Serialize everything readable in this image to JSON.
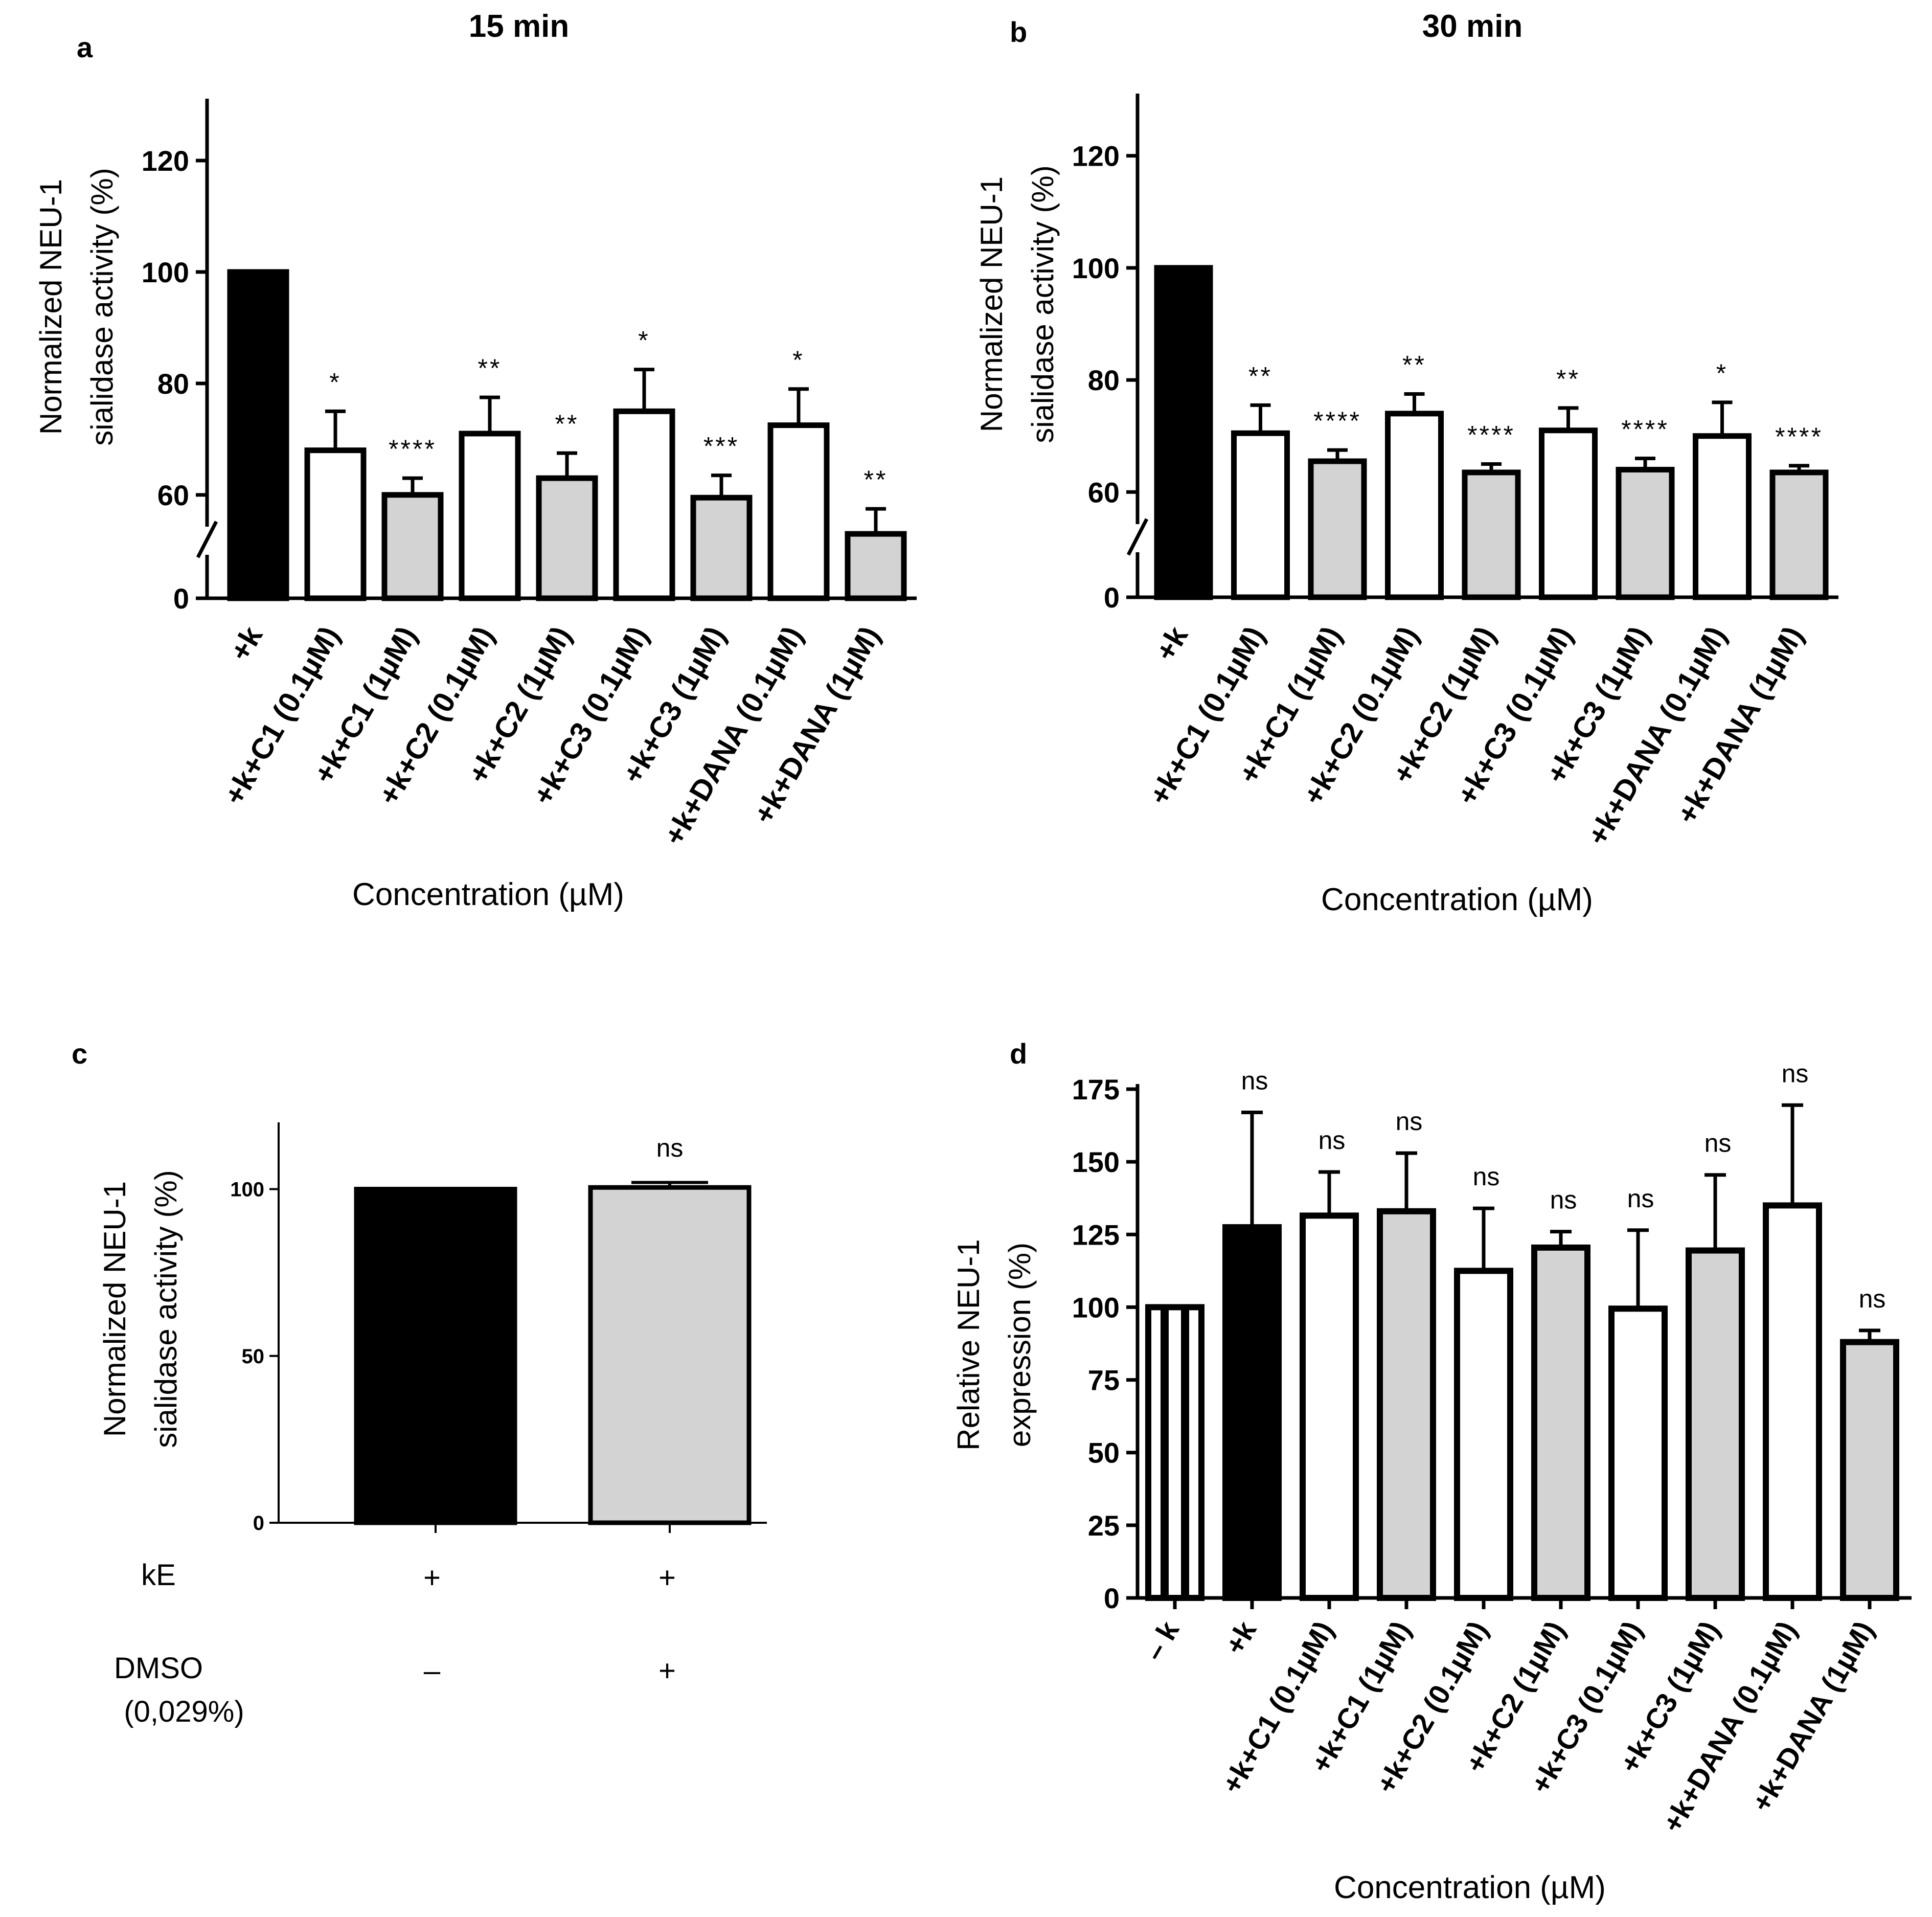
{
  "figure": {
    "panels": [
      "a",
      "b",
      "c",
      "d"
    ]
  },
  "chart_data": [
    {
      "id": "a",
      "type": "bar",
      "panel_letter": "a",
      "title": "15 min",
      "ylabel_lines": [
        "Normalized NEU-1",
        "sialidase activity (%)"
      ],
      "xlabel": "Concentration (µM)",
      "y_ticks": [
        0,
        60,
        80,
        100,
        120
      ],
      "y_lower_segment": [
        0,
        52
      ],
      "y_upper_segment": [
        52,
        130
      ],
      "axis_break": true,
      "categories": [
        "+k",
        "+k+C1 (0.1µM)",
        "+k+C1 (1µM)",
        "+k+C2 (0.1µM)",
        "+k+C2 (1µM)",
        "+k+C3 (0.1µM)",
        "+k+C3 (1µM)",
        "+k+DANA (0.1µM)",
        "+k+DANA (1µM)"
      ],
      "values": [
        100,
        68,
        60,
        71,
        63,
        75,
        59.5,
        72.5,
        53
      ],
      "errors": [
        0,
        7,
        3,
        6.5,
        4.5,
        7.5,
        4,
        6.5,
        4.5
      ],
      "fills": [
        "#000000",
        "#ffffff",
        "#d3d3d3",
        "#ffffff",
        "#d3d3d3",
        "#ffffff",
        "#d3d3d3",
        "#ffffff",
        "#d3d3d3"
      ],
      "significance": [
        "",
        "*",
        "****",
        "**",
        "**",
        "*",
        "***",
        "*",
        "**"
      ]
    },
    {
      "id": "b",
      "type": "bar",
      "panel_letter": "b",
      "title": "30 min",
      "ylabel_lines": [
        "Normalized NEU-1",
        "sialidase activity (%)"
      ],
      "xlabel": "Concentration (µM)",
      "y_ticks": [
        0,
        60,
        80,
        100,
        120
      ],
      "y_lower_segment": [
        0,
        52
      ],
      "y_upper_segment": [
        52,
        130
      ],
      "axis_break": true,
      "categories": [
        "+k",
        "+k+C1 (0.1µM)",
        "+k+C1 (1µM)",
        "+k+C2 (0.1µM)",
        "+k+C2 (1µM)",
        "+k+C3 (0.1µM)",
        "+k+C3 (1µM)",
        "+k+DANA (0.1µM)",
        "+k+DANA (1µM)"
      ],
      "values": [
        100,
        70.5,
        65.5,
        74,
        63.5,
        71,
        64,
        70,
        63.5
      ],
      "errors": [
        0,
        5,
        2,
        3.5,
        1.5,
        4,
        2,
        6,
        1.2
      ],
      "fills": [
        "#000000",
        "#ffffff",
        "#d3d3d3",
        "#ffffff",
        "#d3d3d3",
        "#ffffff",
        "#d3d3d3",
        "#ffffff",
        "#d3d3d3"
      ],
      "significance": [
        "",
        "**",
        "****",
        "**",
        "****",
        "**",
        "****",
        "*",
        "****"
      ]
    },
    {
      "id": "c",
      "type": "bar",
      "panel_letter": "c",
      "title": "",
      "ylabel_lines": [
        "Normalized NEU-1",
        "sialidase activity (%)"
      ],
      "y_ticks": [
        0,
        50,
        100
      ],
      "ylim": [
        0,
        120
      ],
      "categories": [
        "kE+ DMSO–",
        "kE+ DMSO+"
      ],
      "values": [
        100,
        100.5
      ],
      "errors": [
        0,
        1.5
      ],
      "fills": [
        "#000000",
        "#d3d3d3"
      ],
      "significance": [
        "",
        "ns"
      ],
      "row_labels": [
        {
          "label": "kE",
          "values": [
            "+",
            "+"
          ]
        },
        {
          "label": "DMSO",
          "sublabel": "(0,029%)",
          "values": [
            "–",
            "+"
          ]
        }
      ]
    },
    {
      "id": "d",
      "type": "bar",
      "panel_letter": "d",
      "title": "",
      "ylabel_lines": [
        "Relative NEU-1",
        "expression (%)"
      ],
      "xlabel": "Concentration (µM)",
      "y_ticks": [
        0,
        25,
        50,
        75,
        100,
        125,
        150,
        175
      ],
      "ylim": [
        0,
        175
      ],
      "categories": [
        "– k",
        "+k",
        "+k+C1 (0.1µM)",
        "+k+C1 (1µM)",
        "+k+C2 (0.1µM)",
        "+k+C2 (1µM)",
        "+k+C3 (0.1µM)",
        "+k+C3 (1µM)",
        "+k+DANA (0.1µM)",
        "+k+DANA (1µM)"
      ],
      "values": [
        100,
        127.5,
        131.5,
        133,
        112.5,
        120.5,
        99.5,
        119.5,
        135,
        88
      ],
      "errors": [
        0,
        39.5,
        15,
        20,
        21.5,
        5.5,
        27,
        26,
        34.5,
        4
      ],
      "fills": [
        "#000000",
        "#000000",
        "#ffffff",
        "#d3d3d3",
        "#ffffff",
        "#d3d3d3",
        "#ffffff",
        "#d3d3d3",
        "#ffffff",
        "#d3d3d3"
      ],
      "first_bar_striped": true,
      "significance": [
        "",
        "ns",
        "ns",
        "ns",
        "ns",
        "ns",
        "ns",
        "ns",
        "ns",
        "ns"
      ]
    }
  ]
}
